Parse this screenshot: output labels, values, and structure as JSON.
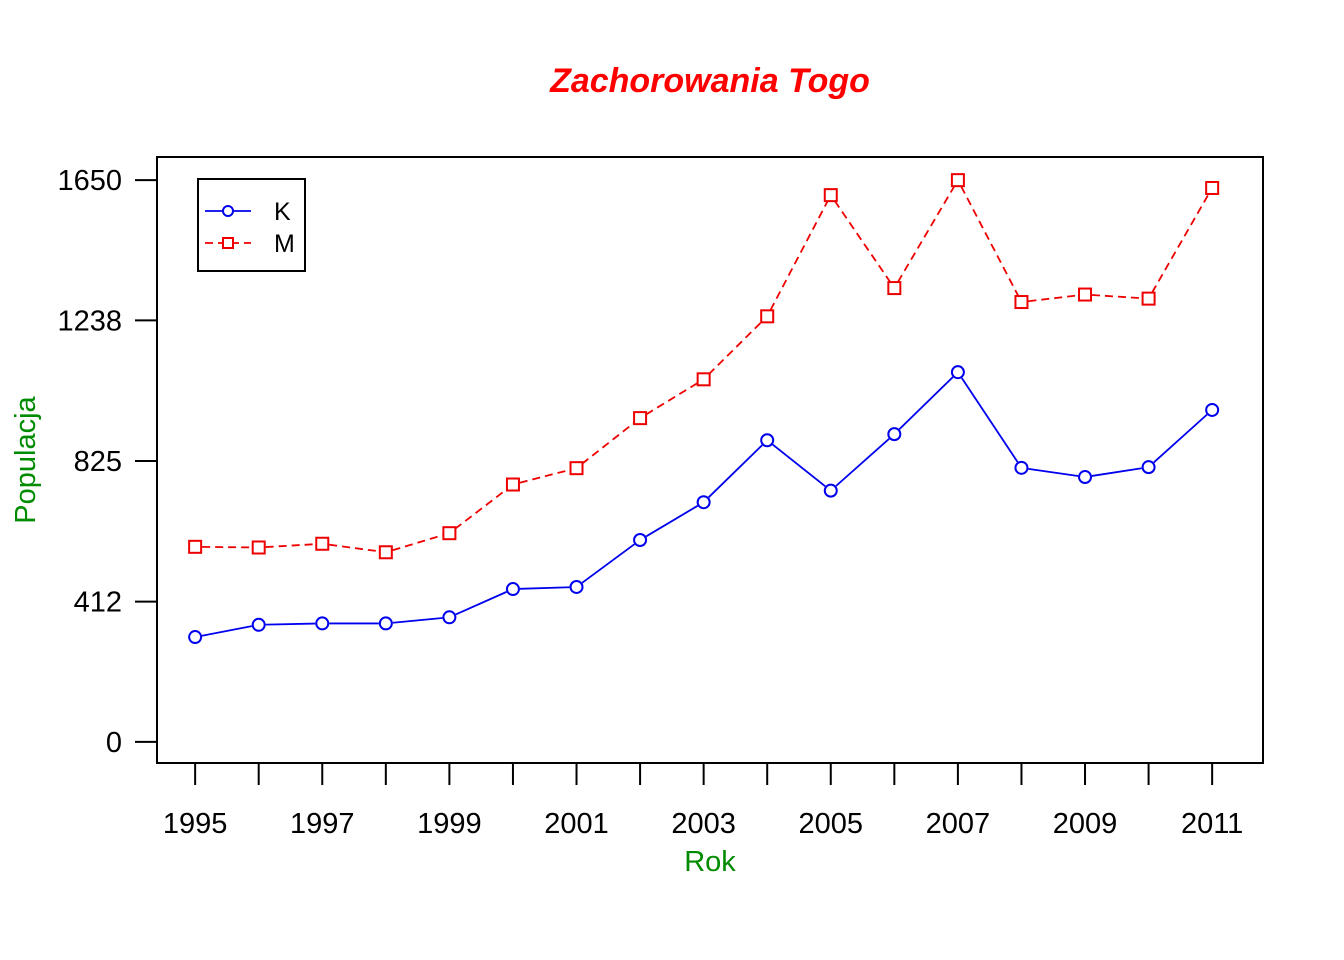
{
  "chart_data": {
    "type": "line",
    "title": "Zachorowania Togo",
    "xlabel": "Rok",
    "ylabel": "Populacja",
    "x": [
      1995,
      1996,
      1997,
      1998,
      1999,
      2000,
      2001,
      2002,
      2003,
      2004,
      2005,
      2006,
      2007,
      2008,
      2009,
      2010,
      2011
    ],
    "x_tick_labels": [
      "1995",
      "1997",
      "1999",
      "2001",
      "2003",
      "2005",
      "2007",
      "2009",
      "2011"
    ],
    "y_ticks": [
      0,
      412,
      825,
      1238,
      1650
    ],
    "y_tick_labels": [
      "0",
      "412",
      "825",
      "1238",
      "1650"
    ],
    "xlim": [
      1994.4,
      2011.8
    ],
    "ylim": [
      -62,
      1718
    ],
    "grid": false,
    "legend_position": "top-left",
    "series": [
      {
        "name": "K",
        "color": "#0000ee",
        "line_style": "solid",
        "marker": "circle",
        "values": [
          308,
          344,
          348,
          348,
          366,
          449,
          455,
          593,
          704,
          886,
          738,
          904,
          1086,
          805,
          778,
          807,
          975
        ]
      },
      {
        "name": "M",
        "color": "#ee0000",
        "line_style": "dashed",
        "marker": "square",
        "values": [
          573,
          571,
          582,
          557,
          613,
          756,
          804,
          951,
          1065,
          1250,
          1606,
          1333,
          1650,
          1292,
          1314,
          1302,
          1627
        ]
      }
    ],
    "colors": {
      "title": "#ff0000",
      "axis_titles": "#008b00",
      "frame": "#000000"
    }
  }
}
